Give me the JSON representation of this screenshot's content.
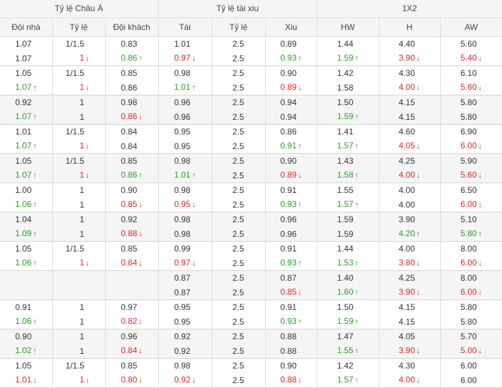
{
  "groups": [
    {
      "label": "Tỷ lệ Châu Á"
    },
    {
      "label": "Tỷ lệ tài xiu"
    },
    {
      "label": "1X2"
    }
  ],
  "columns": [
    "Đội nhà",
    "Tỷ lệ",
    "Đội khách",
    "Tài",
    "Tỷ lệ",
    "Xiu",
    "HW",
    "H",
    "AW"
  ],
  "colors": {
    "up": "#23a223",
    "down": "#e02424",
    "neutral": "#333333"
  },
  "matches": [
    {
      "shade": false,
      "rows": [
        [
          "1.07",
          "1/1.5",
          "0.83",
          "1.01",
          "2.5",
          "0.89",
          "1.44",
          "4.40",
          "5.60"
        ],
        [
          "1.07",
          "1|d",
          "0.86|u",
          "0.97|d",
          "2.5",
          "0.93|u",
          "1.59|u",
          "3.90|d",
          "5.40|d"
        ]
      ]
    },
    {
      "shade": false,
      "rows": [
        [
          "1.05",
          "1/1.5",
          "0.85",
          "0.98",
          "2.5",
          "0.90",
          "1.42",
          "4.30",
          "6.10"
        ],
        [
          "1.07|u",
          "1|d",
          "0.86",
          "1.01|u",
          "2.5",
          "0.89|d",
          "1.58",
          "4.00|d",
          "5.60|d"
        ]
      ]
    },
    {
      "shade": true,
      "rows": [
        [
          "0.92",
          "1",
          "0.98",
          "0.96",
          "2.5",
          "0.94",
          "1.50",
          "4.15",
          "5.80"
        ],
        [
          "1.07|u",
          "1",
          "0.86|d",
          "0.96",
          "2.5",
          "0.94",
          "1.59|u",
          "4.15",
          "5.80"
        ]
      ]
    },
    {
      "shade": false,
      "rows": [
        [
          "1.01",
          "1/1.5",
          "0.84",
          "0.95",
          "2.5",
          "0.86",
          "1.41",
          "4.60",
          "6.90"
        ],
        [
          "1.07|u",
          "1|d",
          "0.84",
          "0.95",
          "2.5",
          "0.91|u",
          "1.57|u",
          "4.05|d",
          "6.00|d"
        ]
      ]
    },
    {
      "shade": true,
      "rows": [
        [
          "1.05",
          "1/1.5",
          "0.85",
          "0.98",
          "2.5",
          "0.90",
          "1.43",
          "4.25",
          "5.90"
        ],
        [
          "1.07|u",
          "1|d",
          "0.86|u",
          "1.01|u",
          "2.5",
          "0.89|d",
          "1.58|u",
          "4.00|d",
          "5.60|d"
        ]
      ]
    },
    {
      "shade": false,
      "rows": [
        [
          "1.00",
          "1",
          "0.90",
          "0.98",
          "2.5",
          "0.91",
          "1.55",
          "4.00",
          "6.50"
        ],
        [
          "1.06|u",
          "1",
          "0.85|d",
          "0.95|d",
          "2.5",
          "0.93|u",
          "1.57|u",
          "4.00",
          "6.00|d"
        ]
      ]
    },
    {
      "shade": true,
      "rows": [
        [
          "1.04",
          "1",
          "0.92",
          "0.98",
          "2.5",
          "0.96",
          "1.59",
          "3.90",
          "5.10"
        ],
        [
          "1.09|u",
          "1",
          "0.88|d",
          "0.98",
          "2.5",
          "0.96",
          "1.59",
          "4.20|u",
          "5.80|u"
        ]
      ]
    },
    {
      "shade": false,
      "rows": [
        [
          "1.05",
          "1/1.5",
          "0.85",
          "0.99",
          "2.5",
          "0.91",
          "1.44",
          "4.00",
          "8.00"
        ],
        [
          "1.06|u",
          "1|d",
          "0.84|d",
          "0.97|d",
          "2.5",
          "0.93|u",
          "1.53|u",
          "3.80|d",
          "6.00|d"
        ]
      ]
    },
    {
      "shade": true,
      "rows": [
        [
          "",
          "",
          "",
          "0.87",
          "2.5",
          "0.87",
          "1.40",
          "4.25",
          "8.00"
        ],
        [
          "",
          "",
          "",
          "0.87",
          "2.5",
          "0.85|d",
          "1.60|u",
          "3.90|d",
          "6.00|d"
        ]
      ]
    },
    {
      "shade": false,
      "rows": [
        [
          "0.91",
          "1",
          "0.97",
          "0.95",
          "2.5",
          "0.91",
          "1.50",
          "4.15",
          "5.80"
        ],
        [
          "1.06|u",
          "1",
          "0.82|d",
          "0.95",
          "2.5",
          "0.93|u",
          "1.59|u",
          "4.15",
          "5.80"
        ]
      ]
    },
    {
      "shade": true,
      "rows": [
        [
          "0.90",
          "1",
          "0.96",
          "0.92",
          "2.5",
          "0.88",
          "1.47",
          "4.05",
          "5.70"
        ],
        [
          "1.02|u",
          "1",
          "0.84|d",
          "0.92",
          "2.5",
          "0.88",
          "1.55|u",
          "3.90|d",
          "5.00|d"
        ]
      ]
    },
    {
      "shade": false,
      "rows": [
        [
          "1.05",
          "1/1.5",
          "0.85",
          "0.98",
          "2.5",
          "0.90",
          "1.42",
          "4.30",
          "6.00"
        ],
        [
          "1.01|d",
          "1|d",
          "0.80|d",
          "0.92|d",
          "2.5",
          "0.88|d",
          "1.57|u",
          "4.00|d",
          "6.00"
        ]
      ]
    }
  ]
}
